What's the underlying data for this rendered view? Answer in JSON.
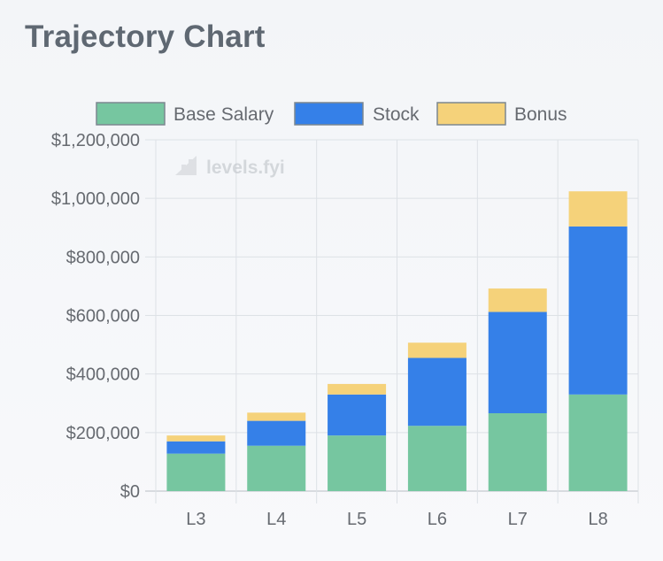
{
  "page": {
    "title": "Trajectory Chart"
  },
  "watermark": {
    "text": "levels.fyi"
  },
  "colors": {
    "base_salary": "#76c6a0",
    "stock": "#3580e8",
    "bonus": "#f5d27a",
    "grid": "#d9dde3",
    "axis_text": "#666666"
  },
  "chart_data": {
    "type": "bar",
    "stacked": true,
    "title": "Trajectory Chart",
    "xlabel": "",
    "ylabel": "",
    "categories": [
      "L3",
      "L4",
      "L5",
      "L6",
      "L7",
      "L8"
    ],
    "series": [
      {
        "name": "Base Salary",
        "color": "#76c6a0",
        "values": [
          128000,
          155000,
          190000,
          223000,
          266000,
          330000
        ]
      },
      {
        "name": "Stock",
        "color": "#3580e8",
        "values": [
          42000,
          85000,
          140000,
          232000,
          346000,
          574000
        ]
      },
      {
        "name": "Bonus",
        "color": "#f5d27a",
        "values": [
          20000,
          28000,
          36000,
          52000,
          80000,
          120000
        ]
      }
    ],
    "ylim": [
      0,
      1200000
    ],
    "yticks": [
      0,
      200000,
      400000,
      600000,
      800000,
      1000000,
      1200000
    ],
    "ytick_labels": [
      "$0",
      "$200,000",
      "$400,000",
      "$600,000",
      "$800,000",
      "$1,000,000",
      "$1,200,000"
    ],
    "legend": {
      "position": "top"
    },
    "grid": true
  }
}
